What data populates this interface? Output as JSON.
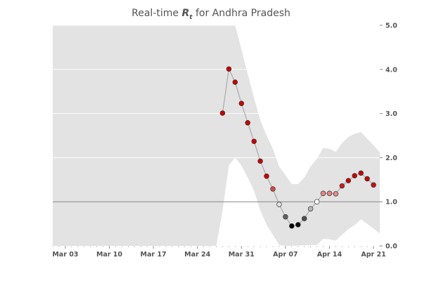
{
  "chart_data": {
    "type": "line",
    "title": {
      "prefix": "Real-time ",
      "symbol": "R",
      "subscript": "t",
      "suffix": " for Andhra Pradesh"
    },
    "xlabel": "",
    "ylabel": "",
    "x_start": "2020-03-01",
    "x_end": "2020-04-22",
    "ylim": [
      0,
      5
    ],
    "y_ticks": [
      0,
      1,
      2,
      3,
      4,
      5
    ],
    "y_tick_labels": [
      "0.0",
      "1.0",
      "2.0",
      "3.0",
      "4.0",
      "5.0"
    ],
    "x_ticks": [
      "2020-03-03",
      "2020-03-10",
      "2020-03-17",
      "2020-03-24",
      "2020-03-31",
      "2020-04-07",
      "2020-04-14",
      "2020-04-21"
    ],
    "x_tick_labels": [
      "Mar 03",
      "Mar 10",
      "Mar 17",
      "Mar 24",
      "Mar 31",
      "Apr 07",
      "Apr 14",
      "Apr 21"
    ],
    "reference_line": 1.0,
    "series": [
      {
        "points": [
          {
            "x": "2020-03-28",
            "y": 3.01
          },
          {
            "x": "2020-03-29",
            "y": 4.01
          },
          {
            "x": "2020-03-30",
            "y": 3.71
          },
          {
            "x": "2020-03-31",
            "y": 3.23
          },
          {
            "x": "2020-04-01",
            "y": 2.79
          },
          {
            "x": "2020-04-02",
            "y": 2.37
          },
          {
            "x": "2020-04-03",
            "y": 1.92
          },
          {
            "x": "2020-04-04",
            "y": 1.58
          },
          {
            "x": "2020-04-05",
            "y": 1.29
          },
          {
            "x": "2020-04-06",
            "y": 0.94
          },
          {
            "x": "2020-04-07",
            "y": 0.66
          },
          {
            "x": "2020-04-08",
            "y": 0.45
          },
          {
            "x": "2020-04-09",
            "y": 0.48
          },
          {
            "x": "2020-04-10",
            "y": 0.62
          },
          {
            "x": "2020-04-11",
            "y": 0.84
          },
          {
            "x": "2020-04-12",
            "y": 1.0
          },
          {
            "x": "2020-04-13",
            "y": 1.19
          },
          {
            "x": "2020-04-14",
            "y": 1.19
          },
          {
            "x": "2020-04-15",
            "y": 1.18
          },
          {
            "x": "2020-04-16",
            "y": 1.36
          },
          {
            "x": "2020-04-17",
            "y": 1.48
          },
          {
            "x": "2020-04-18",
            "y": 1.59
          },
          {
            "x": "2020-04-19",
            "y": 1.65
          },
          {
            "x": "2020-04-20",
            "y": 1.52
          },
          {
            "x": "2020-04-21",
            "y": 1.38
          }
        ]
      }
    ],
    "credible_interval": {
      "upper": [
        {
          "x": "2020-03-01",
          "y": 5.0
        },
        {
          "x": "2020-03-30",
          "y": 5.0
        },
        {
          "x": "2020-03-31",
          "y": 4.45
        },
        {
          "x": "2020-04-01",
          "y": 3.9
        },
        {
          "x": "2020-04-02",
          "y": 3.35
        },
        {
          "x": "2020-04-03",
          "y": 2.85
        },
        {
          "x": "2020-04-04",
          "y": 2.5
        },
        {
          "x": "2020-04-05",
          "y": 2.2
        },
        {
          "x": "2020-04-06",
          "y": 1.8
        },
        {
          "x": "2020-04-07",
          "y": 1.6
        },
        {
          "x": "2020-04-08",
          "y": 1.4
        },
        {
          "x": "2020-04-09",
          "y": 1.4
        },
        {
          "x": "2020-04-10",
          "y": 1.55
        },
        {
          "x": "2020-04-11",
          "y": 1.8
        },
        {
          "x": "2020-04-12",
          "y": 1.98
        },
        {
          "x": "2020-04-13",
          "y": 2.22
        },
        {
          "x": "2020-04-14",
          "y": 2.2
        },
        {
          "x": "2020-04-15",
          "y": 2.13
        },
        {
          "x": "2020-04-16",
          "y": 2.33
        },
        {
          "x": "2020-04-17",
          "y": 2.47
        },
        {
          "x": "2020-04-18",
          "y": 2.54
        },
        {
          "x": "2020-04-19",
          "y": 2.58
        },
        {
          "x": "2020-04-20",
          "y": 2.43
        },
        {
          "x": "2020-04-21",
          "y": 2.28
        },
        {
          "x": "2020-04-22",
          "y": 2.12
        }
      ],
      "lower": [
        {
          "x": "2020-03-01",
          "y": 0.0
        },
        {
          "x": "2020-03-27",
          "y": 0.0
        },
        {
          "x": "2020-03-28",
          "y": 0.8
        },
        {
          "x": "2020-03-29",
          "y": 1.82
        },
        {
          "x": "2020-03-30",
          "y": 2.0
        },
        {
          "x": "2020-03-31",
          "y": 1.82
        },
        {
          "x": "2020-04-01",
          "y": 1.55
        },
        {
          "x": "2020-04-02",
          "y": 1.25
        },
        {
          "x": "2020-04-03",
          "y": 0.8
        },
        {
          "x": "2020-04-04",
          "y": 0.48
        },
        {
          "x": "2020-04-05",
          "y": 0.25
        },
        {
          "x": "2020-04-06",
          "y": 0.02
        },
        {
          "x": "2020-04-07",
          "y": 0.0
        },
        {
          "x": "2020-04-12",
          "y": 0.02
        },
        {
          "x": "2020-04-13",
          "y": 0.16
        },
        {
          "x": "2020-04-14",
          "y": 0.15
        },
        {
          "x": "2020-04-15",
          "y": 0.12
        },
        {
          "x": "2020-04-16",
          "y": 0.25
        },
        {
          "x": "2020-04-17",
          "y": 0.38
        },
        {
          "x": "2020-04-18",
          "y": 0.47
        },
        {
          "x": "2020-04-19",
          "y": 0.6
        },
        {
          "x": "2020-04-20",
          "y": 0.5
        },
        {
          "x": "2020-04-21",
          "y": 0.39
        },
        {
          "x": "2020-04-22",
          "y": 0.28
        }
      ]
    },
    "grid": true,
    "legend": "none",
    "colors": {
      "band": "#e3e3e3",
      "line": "#aaaaaa",
      "reference": "#888888",
      "grid": "#ffffff",
      "high": "#cc0000",
      "low": "#000000",
      "neutral": "#ffffff",
      "marker_edge": "#333333"
    }
  }
}
